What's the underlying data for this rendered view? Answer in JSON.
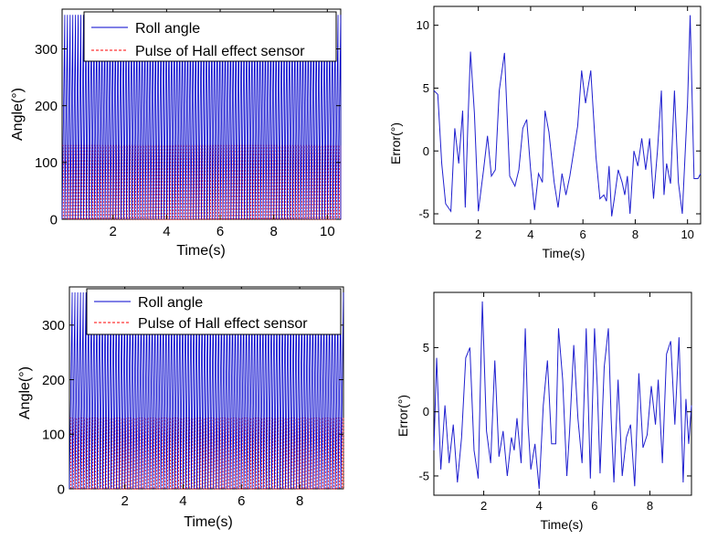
{
  "colors": {
    "roll": "#0000cc",
    "hall": "#ff0000",
    "error": "#1f1fcf",
    "axis": "#000000",
    "background": "#ffffff"
  },
  "chart_data": [
    {
      "type": "line",
      "xlabel": "Time(s)",
      "ylabel": "Angle(°)",
      "xlim": [
        0.1,
        10.5
      ],
      "ylim": [
        0,
        370
      ],
      "xticks": [
        2,
        4,
        6,
        8,
        10
      ],
      "yticks": [
        0,
        100,
        200,
        300
      ],
      "legend": {
        "placement": "top-center",
        "entries": [
          "Roll angle",
          "Pulse of Hall effect sensor"
        ]
      },
      "series": [
        {
          "name": "Roll angle",
          "kind": "sawtooth",
          "min": 0,
          "max": 360,
          "period_s": 0.1
        },
        {
          "name": "Pulse of Hall effect sensor",
          "kind": "pulse",
          "low": 0,
          "high": 130,
          "period_s": 0.1
        }
      ]
    },
    {
      "type": "line",
      "xlabel": "Time(s)",
      "ylabel": "Error(°)",
      "xlim": [
        0.3,
        10.5
      ],
      "ylim": [
        -5.8,
        11.5
      ],
      "xticks": [
        2,
        4,
        6,
        8,
        10
      ],
      "yticks": [
        -5,
        0,
        5,
        10
      ],
      "series": [
        {
          "name": "Error",
          "x": [
            0.3,
            0.45,
            0.6,
            0.75,
            0.95,
            1.1,
            1.25,
            1.4,
            1.5,
            1.6,
            1.7,
            1.85,
            2.0,
            2.2,
            2.35,
            2.5,
            2.65,
            2.8,
            3.0,
            3.2,
            3.4,
            3.55,
            3.7,
            3.85,
            4.0,
            4.15,
            4.3,
            4.45,
            4.55,
            4.7,
            4.9,
            5.05,
            5.2,
            5.35,
            5.5,
            5.65,
            5.8,
            5.95,
            6.1,
            6.3,
            6.5,
            6.65,
            6.8,
            6.9,
            7.0,
            7.1,
            7.2,
            7.35,
            7.5,
            7.6,
            7.7,
            7.8,
            7.95,
            8.1,
            8.25,
            8.4,
            8.55,
            8.7,
            8.85,
            9.0,
            9.1,
            9.2,
            9.35,
            9.5,
            9.65,
            9.8,
            10.0,
            10.1,
            10.25,
            10.4,
            10.5
          ],
          "y": [
            4.8,
            4.5,
            -1,
            -4.2,
            -4.8,
            1.8,
            -1,
            3.2,
            -4.5,
            2.2,
            7.9,
            3,
            -4.8,
            -1.5,
            1.2,
            -2,
            -1.5,
            4.8,
            7.8,
            -2,
            -2.8,
            -1.5,
            1.8,
            2.5,
            -1.5,
            -4.7,
            -1.8,
            -2.5,
            3.2,
            1.5,
            -2.5,
            -4.5,
            -1.8,
            -3.5,
            -2,
            0,
            2,
            6.4,
            3.8,
            6.4,
            -0.5,
            -3.8,
            -3.5,
            -4,
            -1.2,
            -5.2,
            -3.8,
            -1.5,
            -2.5,
            -3.5,
            -2,
            -5,
            0,
            -1.2,
            1,
            -1.5,
            1,
            -3.8,
            0,
            4.8,
            -3.5,
            -1,
            -2.6,
            4.8,
            -2.5,
            -5,
            3.8,
            10.8,
            -2.2,
            -2.2,
            -1.8
          ]
        }
      ]
    },
    {
      "type": "line",
      "xlabel": "Time(s)",
      "ylabel": "Angle(°)",
      "xlim": [
        0.1,
        9.5
      ],
      "ylim": [
        0,
        370
      ],
      "xticks": [
        2,
        4,
        6,
        8
      ],
      "yticks": [
        0,
        100,
        200,
        300
      ],
      "legend": {
        "placement": "top-center",
        "entries": [
          "Roll angle",
          "Pulse of Hall effect sensor"
        ]
      },
      "series": [
        {
          "name": "Roll angle",
          "kind": "sawtooth",
          "min": 0,
          "max": 360,
          "period_s": 0.095
        },
        {
          "name": "Pulse of Hall effect sensor",
          "kind": "pulse",
          "low": 0,
          "high": 130,
          "period_s": 0.095
        }
      ]
    },
    {
      "type": "line",
      "xlabel": "Time(s)",
      "ylabel": "Error(°)",
      "xlim": [
        0.2,
        9.5
      ],
      "ylim": [
        -6.5,
        9.3
      ],
      "xticks": [
        2,
        4,
        6,
        8
      ],
      "yticks": [
        -5,
        0,
        5
      ],
      "series": [
        {
          "name": "Error",
          "x": [
            0.2,
            0.3,
            0.45,
            0.6,
            0.75,
            0.9,
            1.05,
            1.2,
            1.35,
            1.5,
            1.65,
            1.8,
            1.95,
            2.1,
            2.25,
            2.4,
            2.55,
            2.7,
            2.85,
            3.0,
            3.1,
            3.2,
            3.35,
            3.5,
            3.6,
            3.7,
            3.85,
            4.0,
            4.15,
            4.3,
            4.45,
            4.6,
            4.7,
            4.85,
            5.0,
            5.1,
            5.25,
            5.4,
            5.55,
            5.7,
            5.85,
            6.0,
            6.1,
            6.2,
            6.35,
            6.5,
            6.6,
            6.7,
            6.85,
            7.0,
            7.15,
            7.3,
            7.45,
            7.6,
            7.75,
            7.9,
            8.05,
            8.2,
            8.3,
            8.45,
            8.6,
            8.75,
            8.9,
            9.05,
            9.2,
            9.3,
            9.4,
            9.5
          ],
          "y": [
            -3,
            4.2,
            -4.5,
            0.5,
            -4,
            -1,
            -5.5,
            -2,
            4.2,
            5,
            -3,
            -5.2,
            8.6,
            -1.5,
            -4,
            4,
            -3.5,
            -1.5,
            -5,
            -2,
            -3,
            -0.5,
            -4,
            6.5,
            -1,
            -4.5,
            -2.5,
            -6,
            0.5,
            4,
            -2.5,
            -2.5,
            6.5,
            2.5,
            -5,
            -1.5,
            5.2,
            -0.5,
            -4,
            6.5,
            -5.2,
            6.5,
            2,
            -4.8,
            3.5,
            6.5,
            -0.5,
            -5.5,
            2.5,
            -5,
            -2,
            -1,
            -5.8,
            3,
            -2.8,
            -1.8,
            2,
            -1,
            2.5,
            -4,
            4.5,
            5.5,
            -1,
            5.8,
            -5.5,
            1,
            -2.5,
            0.5
          ]
        }
      ]
    }
  ]
}
